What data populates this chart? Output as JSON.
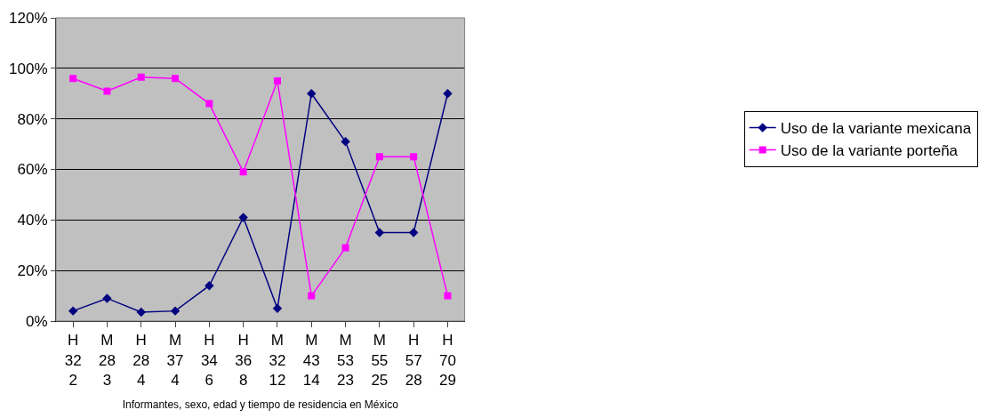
{
  "chart_data": {
    "type": "line",
    "xlabel": "Informantes, sexo, edad y tiempo de residencia en México",
    "categories": [
      "H\n32\n2",
      "M\n28\n3",
      "H\n28\n4",
      "M\n37\n4",
      "H\n34\n6",
      "H\n36\n8",
      "M\n32\n12",
      "M\n43\n14",
      "M\n53\n23",
      "M\n55\n25",
      "H\n57\n28",
      "H\n70\n29"
    ],
    "series": [
      {
        "name": "Uso de la variante mexicana",
        "color": "#000080",
        "marker": "diamond",
        "values": [
          4,
          9,
          3.5,
          4,
          14,
          41,
          5,
          90,
          71,
          35,
          35,
          90
        ]
      },
      {
        "name": "Uso de la variante porteña",
        "color": "#ff00ff",
        "marker": "square",
        "values": [
          96,
          91,
          96.5,
          96,
          86,
          59,
          95,
          10,
          29,
          65,
          65,
          10
        ]
      }
    ],
    "ylim": [
      0,
      120
    ],
    "yticks": [
      {
        "value": 0,
        "label": "0%"
      },
      {
        "value": 20,
        "label": "20%"
      },
      {
        "value": 40,
        "label": "40%"
      },
      {
        "value": 60,
        "label": "60%"
      },
      {
        "value": 80,
        "label": "80%"
      },
      {
        "value": 100,
        "label": "100%"
      },
      {
        "value": 120,
        "label": "120%"
      }
    ],
    "grid": "y",
    "legend": "right",
    "line_style": "solid"
  }
}
